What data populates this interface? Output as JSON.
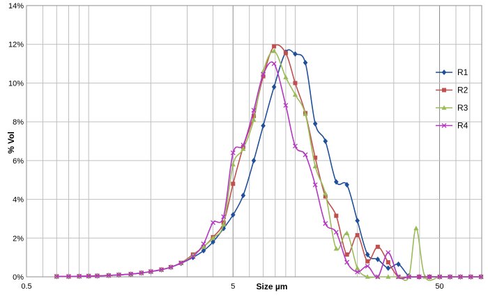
{
  "chart_data": {
    "type": "line",
    "title": "",
    "xlabel": "Size µm",
    "ylabel": "% Vol",
    "x_scale": "log",
    "xlim": [
      0.5,
      80
    ],
    "ylim": [
      0,
      14
    ],
    "grid": true,
    "legend_position": "right",
    "x_tick_labels": [
      {
        "value": 0.5,
        "label": "0.5"
      },
      {
        "value": 5,
        "label": "5"
      },
      {
        "value": 50,
        "label": "50"
      }
    ],
    "y_tick_labels": [
      "0%",
      "2%",
      "4%",
      "6%",
      "8%",
      "10%",
      "12%",
      "14%"
    ],
    "y_ticks": [
      0,
      2,
      4,
      6,
      8,
      10,
      12,
      14
    ],
    "series": [
      {
        "name": "R1",
        "color": "#1F4E9A",
        "marker": "diamond",
        "points": [
          [
            0.7,
            0.02
          ],
          [
            0.8,
            0.02
          ],
          [
            0.9,
            0.03
          ],
          [
            1.0,
            0.04
          ],
          [
            1.1,
            0.05
          ],
          [
            1.25,
            0.07
          ],
          [
            1.4,
            0.1
          ],
          [
            1.6,
            0.14
          ],
          [
            1.8,
            0.2
          ],
          [
            2.0,
            0.27
          ],
          [
            2.25,
            0.37
          ],
          [
            2.5,
            0.5
          ],
          [
            2.8,
            0.7
          ],
          [
            3.2,
            1.0
          ],
          [
            3.6,
            1.35
          ],
          [
            4.0,
            1.8
          ],
          [
            4.5,
            2.5
          ],
          [
            5.0,
            3.2
          ],
          [
            5.6,
            4.2
          ],
          [
            6.3,
            6.0
          ],
          [
            7.0,
            7.8
          ],
          [
            7.9,
            9.8
          ],
          [
            9.0,
            11.6
          ],
          [
            10.0,
            11.5
          ],
          [
            11.2,
            11.05
          ],
          [
            12.5,
            7.9
          ],
          [
            14.0,
            7.0
          ],
          [
            15.8,
            4.9
          ],
          [
            17.8,
            4.75
          ],
          [
            20.0,
            2.9
          ],
          [
            22.4,
            1.15
          ],
          [
            25.1,
            0.9
          ],
          [
            28.2,
            0.45
          ],
          [
            31.6,
            0.65
          ],
          [
            35.5,
            0.05
          ],
          [
            39.8,
            0.0
          ],
          [
            44.7,
            0.0
          ],
          [
            50.1,
            0.0
          ],
          [
            56.2,
            0.0
          ],
          [
            63.1,
            0.0
          ],
          [
            70.8,
            0.0
          ],
          [
            79.4,
            0.0
          ]
        ]
      },
      {
        "name": "R2",
        "color": "#C0504D",
        "marker": "square",
        "points": [
          [
            0.7,
            0.02
          ],
          [
            0.8,
            0.02
          ],
          [
            0.9,
            0.03
          ],
          [
            1.0,
            0.04
          ],
          [
            1.1,
            0.05
          ],
          [
            1.25,
            0.07
          ],
          [
            1.4,
            0.1
          ],
          [
            1.6,
            0.14
          ],
          [
            1.8,
            0.2
          ],
          [
            2.0,
            0.27
          ],
          [
            2.25,
            0.37
          ],
          [
            2.5,
            0.5
          ],
          [
            2.8,
            0.72
          ],
          [
            3.2,
            1.15
          ],
          [
            3.6,
            1.55
          ],
          [
            4.0,
            2.05
          ],
          [
            4.5,
            2.8
          ],
          [
            5.0,
            4.8
          ],
          [
            5.6,
            6.7
          ],
          [
            6.3,
            8.3
          ],
          [
            7.0,
            10.35
          ],
          [
            7.9,
            11.9
          ],
          [
            9.0,
            11.55
          ],
          [
            10.0,
            10.0
          ],
          [
            11.2,
            8.45
          ],
          [
            12.5,
            6.15
          ],
          [
            14.0,
            4.15
          ],
          [
            15.8,
            3.15
          ],
          [
            17.8,
            1.15
          ],
          [
            20.0,
            2.15
          ],
          [
            22.4,
            0.8
          ],
          [
            25.1,
            1.55
          ],
          [
            28.2,
            0.75
          ],
          [
            31.6,
            0.0
          ],
          [
            35.5,
            0.0
          ],
          [
            39.8,
            0.0
          ],
          [
            44.7,
            0.0
          ],
          [
            50.1,
            0.0
          ],
          [
            56.2,
            0.0
          ],
          [
            63.1,
            0.0
          ],
          [
            70.8,
            0.0
          ],
          [
            79.4,
            0.0
          ]
        ]
      },
      {
        "name": "R3",
        "color": "#9BBB59",
        "marker": "triangle",
        "points": [
          [
            0.7,
            0.02
          ],
          [
            0.8,
            0.02
          ],
          [
            0.9,
            0.03
          ],
          [
            1.0,
            0.04
          ],
          [
            1.1,
            0.05
          ],
          [
            1.25,
            0.07
          ],
          [
            1.4,
            0.1
          ],
          [
            1.6,
            0.14
          ],
          [
            1.8,
            0.2
          ],
          [
            2.0,
            0.27
          ],
          [
            2.25,
            0.37
          ],
          [
            2.5,
            0.5
          ],
          [
            2.8,
            0.72
          ],
          [
            3.2,
            1.1
          ],
          [
            3.6,
            1.55
          ],
          [
            4.0,
            2.0
          ],
          [
            4.5,
            2.7
          ],
          [
            5.0,
            5.8
          ],
          [
            5.6,
            6.6
          ],
          [
            6.3,
            8.1
          ],
          [
            7.0,
            10.6
          ],
          [
            7.9,
            11.65
          ],
          [
            9.0,
            10.3
          ],
          [
            10.0,
            9.4
          ],
          [
            11.2,
            8.4
          ],
          [
            12.5,
            5.7
          ],
          [
            14.0,
            4.3
          ],
          [
            15.8,
            1.45
          ],
          [
            17.8,
            2.25
          ],
          [
            20.0,
            0.45
          ],
          [
            22.4,
            0.0
          ],
          [
            25.1,
            0.0
          ],
          [
            28.2,
            0.0
          ],
          [
            31.6,
            0.0
          ],
          [
            35.5,
            0.0
          ],
          [
            38.5,
            2.5
          ],
          [
            42.5,
            0.0
          ],
          [
            50.1,
            0.0
          ],
          [
            56.2,
            0.0
          ],
          [
            63.1,
            0.0
          ],
          [
            70.8,
            0.0
          ],
          [
            79.4,
            0.0
          ]
        ]
      },
      {
        "name": "R4",
        "color": "#B533C2",
        "marker": "x",
        "points": [
          [
            0.7,
            0.02
          ],
          [
            0.8,
            0.02
          ],
          [
            0.9,
            0.03
          ],
          [
            1.0,
            0.04
          ],
          [
            1.1,
            0.05
          ],
          [
            1.25,
            0.07
          ],
          [
            1.4,
            0.1
          ],
          [
            1.6,
            0.14
          ],
          [
            1.8,
            0.2
          ],
          [
            2.0,
            0.27
          ],
          [
            2.25,
            0.37
          ],
          [
            2.5,
            0.5
          ],
          [
            2.8,
            0.72
          ],
          [
            3.2,
            1.05
          ],
          [
            3.6,
            1.7
          ],
          [
            4.0,
            2.8
          ],
          [
            4.5,
            3.1
          ],
          [
            5.0,
            6.4
          ],
          [
            5.6,
            6.8
          ],
          [
            6.3,
            8.6
          ],
          [
            7.0,
            10.45
          ],
          [
            7.9,
            11.0
          ],
          [
            9.0,
            8.85
          ],
          [
            10.0,
            6.75
          ],
          [
            11.2,
            6.3
          ],
          [
            12.5,
            4.75
          ],
          [
            14.0,
            2.75
          ],
          [
            15.8,
            2.3
          ],
          [
            17.8,
            0.75
          ],
          [
            20.0,
            0.25
          ],
          [
            22.4,
            0.55
          ],
          [
            25.1,
            0.0
          ],
          [
            28.2,
            1.25
          ],
          [
            31.6,
            0.0
          ],
          [
            35.5,
            0.0
          ],
          [
            39.8,
            0.0
          ],
          [
            44.7,
            0.0
          ],
          [
            50.1,
            0.0
          ],
          [
            56.2,
            0.0
          ],
          [
            63.1,
            0.0
          ],
          [
            70.8,
            0.0
          ],
          [
            79.4,
            0.0
          ]
        ]
      }
    ]
  }
}
